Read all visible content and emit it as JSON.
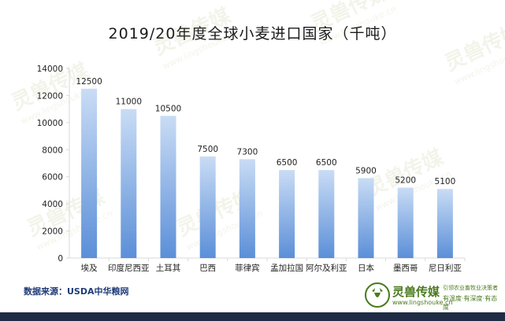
{
  "title": "2019/20年度全球小麦进口国家（千吨）",
  "source": "数据来源：USDA中华粮网",
  "brand": {
    "name": "灵兽传媒",
    "url": "www.lingshouke.cn",
    "slogan_top": "引领农业畜牧业决策者",
    "slogan_bottom": "有温度·有深度·有态度"
  },
  "watermark": {
    "name": "灵兽传媒",
    "url": "www.lingshouke.cn"
  },
  "colors": {
    "bar_top": "#c9dcf5",
    "bar_bottom": "#5b8fd8",
    "axis": "#d9d9d9",
    "brand_green": "#4a7a1e",
    "footer": "#1f2a44"
  },
  "chart_data": {
    "type": "bar",
    "title": "2019/20年度全球小麦进口国家（千吨）",
    "categories": [
      "埃及",
      "印度尼西亚",
      "土耳其",
      "巴西",
      "菲律宾",
      "孟加拉国",
      "阿尔及利亚",
      "日本",
      "墨西哥",
      "尼日利亚"
    ],
    "values": [
      12500,
      11000,
      10500,
      7500,
      7300,
      6500,
      6500,
      5900,
      5200,
      5100
    ],
    "data_labels": [
      "12500",
      "11000",
      "10500",
      "7500",
      "7300",
      "6500",
      "6500",
      "5900",
      "5200",
      "5100"
    ],
    "yticks": [
      "0",
      "2000",
      "4000",
      "6000",
      "8000",
      "10000",
      "12000",
      "14000"
    ],
    "ylim": [
      0,
      14000
    ],
    "grid": false,
    "legend": "none"
  }
}
